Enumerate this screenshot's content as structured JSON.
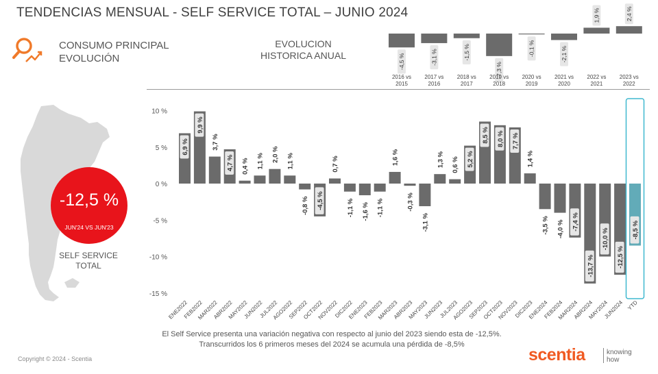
{
  "header": {
    "title": "TENDENCIAS MENSUAL - SELF SERVICE TOTAL –   JUNIO 2024",
    "section_line1": "CONSUMO PRINCIPAL",
    "section_line2": "EVOLUCIÓN",
    "hist_line1": "EVOLUCION",
    "hist_line2": "HISTORICA ANUAL"
  },
  "kpi": {
    "value": "-12,5 %",
    "comparison": "JUN'24 VS JUN'23",
    "label_line1": "SELF SERVICE",
    "label_line2": "TOTAL"
  },
  "footnote": {
    "line1": "El Self Service presenta una variación negativa con respecto al junio del 2023 siendo esta de -12,5%.",
    "line2": "Transcurridos los 6 primeros meses del 2024 se acumula una pérdida de -8,5%"
  },
  "footer": {
    "copyright": "Copyright © 2024 - Scentia",
    "brand": "scentia",
    "tagline1": "knowing",
    "tagline2": "how"
  },
  "colors": {
    "bar": "#6b6b6b",
    "ytd_bar": "#62abb8",
    "ytd_outline": "#3fb8cf",
    "kpi": "#e8141b",
    "brand": "#f05a22",
    "icon": "#f07a2a",
    "map": "#d9d9d9",
    "label_box": "#e6e6e6"
  },
  "icons": {
    "section": "magnifier-trend-icon",
    "map": "argentina-map-icon"
  },
  "chart_data": [
    {
      "type": "bar",
      "title": "",
      "xlabel": "",
      "ylabel": "",
      "ylim": [
        -15,
        10
      ],
      "yticks": [
        "10 %",
        "5 %",
        "0 %",
        "-5 %",
        "-10 %",
        "-15 %"
      ],
      "grid": false,
      "categories": [
        "ENE2022",
        "FEB2022",
        "MAR2022",
        "ABR2022",
        "MAY2022",
        "JUN2022",
        "JUL2022",
        "AGO2022",
        "SEP2022",
        "OCT2022",
        "NOV2022",
        "DIC2022",
        "ENE2023",
        "FEB2023",
        "MAR2023",
        "ABR2023",
        "MAY2023",
        "JUN2023",
        "JUL2023",
        "AGO2023",
        "SEP2023",
        "OCT2023",
        "NOV2023",
        "DIC2023",
        "ENE2024",
        "FEB2024",
        "MAR2024",
        "ABR2024",
        "MAY2024",
        "JUN2024",
        "YTD"
      ],
      "values": [
        6.9,
        9.9,
        3.7,
        4.7,
        0.4,
        1.1,
        2.0,
        1.1,
        -0.8,
        -4.5,
        0.7,
        -1.1,
        -1.6,
        -1.1,
        1.6,
        -0.3,
        -3.1,
        1.3,
        0.6,
        5.2,
        8.5,
        8.0,
        7.7,
        1.4,
        -3.5,
        -4.0,
        -7.4,
        -13.7,
        -10.0,
        -12.5,
        -8.5
      ],
      "labels": [
        "6,9 %",
        "9,9 %",
        "3,7 %",
        "4,7 %",
        "0,4 %",
        "1,1 %",
        "2,0 %",
        "1,1 %",
        "-0,8 %",
        "-4,5 %",
        "0,7 %",
        "-1,1 %",
        "-1,6 %",
        "-1,1 %",
        "1,6 %",
        "-0,3 %",
        "-3,1 %",
        "1,3 %",
        "0,6 %",
        "5,2 %",
        "8,5 %",
        "8,0 %",
        "7,7 %",
        "1,4 %",
        "-3,5 %",
        "-4,0 %",
        "-7,4 %",
        "-13,7 %",
        "-10,0 %",
        "-12,5 %",
        "-8,5 %"
      ],
      "highlight": "YTD"
    },
    {
      "type": "bar",
      "title": "",
      "categories": [
        "2016 vs 2015",
        "2017 vs 2016",
        "2018 vs 2017",
        "2019 vs 2018",
        "2020 vs 2019",
        "2021 vs 2020",
        "2022 vs 2021",
        "2023 vs 2022"
      ],
      "values": [
        -4.5,
        -3.1,
        -1.5,
        -7.3,
        -0.1,
        -2.1,
        1.9,
        2.4
      ],
      "labels": [
        "-4,5 %",
        "-3,1 %",
        "-1,5 %",
        "-7,3 %",
        "-0,1 %",
        "-2,1 %",
        "1,9 %",
        "2,4 %"
      ]
    }
  ]
}
